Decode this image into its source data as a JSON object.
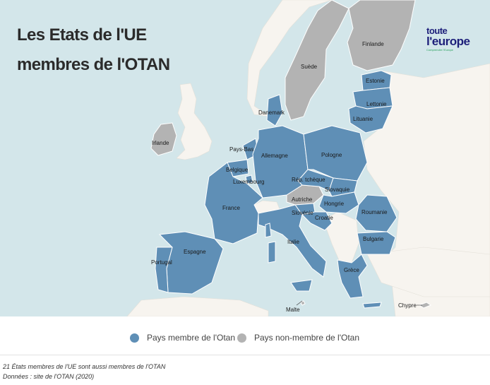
{
  "title": {
    "line1": "Les Etats de l'UE",
    "line2": "membres de l'OTAN"
  },
  "logo": {
    "line1": "toute",
    "line2": "l'europe",
    "tagline": "Comprendre l'Europe"
  },
  "colors": {
    "member": "#5f8fb6",
    "non_member": "#b3b3b3",
    "land_other": "#f7f4ef",
    "sea": "#d3e6ea",
    "border": "#ffffff"
  },
  "countries": {
    "member": [
      "Estonie",
      "Lettonie",
      "Lituanie",
      "Danemark",
      "Pays-Bas",
      "Belgique",
      "Luxembourg",
      "Allemagne",
      "Pologne",
      "Rép. tchèque",
      "Slovaquie",
      "Hongrie",
      "France",
      "Slovénie",
      "Croatie",
      "Roumanie",
      "Bulgarie",
      "Espagne",
      "Portugal",
      "Italie",
      "Grèce"
    ],
    "non_member": [
      "Finlande",
      "Suède",
      "Irlande",
      "Autriche",
      "Malte",
      "Chypre"
    ]
  },
  "labels": {
    "finlande": "Finlande",
    "suede": "Suède",
    "estonie": "Estonie",
    "lettonie": "Lettonie",
    "lituanie": "Lituanie",
    "danemark": "Danemark",
    "irlande": "Irlande",
    "pays_bas": "Pays-Bas",
    "allemagne": "Allemagne",
    "pologne": "Pologne",
    "belgique": "Belgique",
    "luxembourg": "Luxembourg",
    "rep_tcheque": "Rép. tchèque",
    "slovaquie": "Slovaquie",
    "autriche": "Autriche",
    "hongrie": "Hongrie",
    "france": "France",
    "slovenie": "Slovénie",
    "croatie": "Croatie",
    "roumanie": "Roumanie",
    "bulgarie": "Bulgarie",
    "espagne": "Espagne",
    "portugal": "Portugal",
    "italie": "Italie",
    "grece": "Grèce",
    "malte": "Malte",
    "chypre": "Chypre"
  },
  "legend": {
    "member": "Pays membre de l'Otan",
    "non_member": "Pays non-membre de l'Otan"
  },
  "footnotes": {
    "note": "21 États membres de l'UE sont aussi membres de l'OTAN",
    "source": "Données : site de l'OTAN (2020)"
  }
}
